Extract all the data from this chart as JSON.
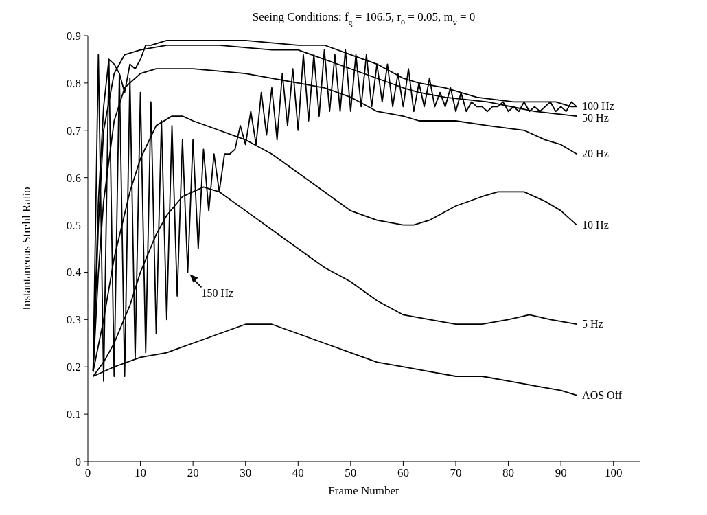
{
  "chart_data": {
    "type": "line",
    "title": "Seeing Conditions: f$_{g}$ = 106.5, r$_{0}$ = 0.05, m$_{v}$ = 0",
    "xlabel": "Frame Number",
    "ylabel": "Instantaneous Strehl Ratio",
    "xlim": [
      0,
      105
    ],
    "xticks": [
      0,
      10,
      20,
      30,
      40,
      50,
      60,
      70,
      80,
      90,
      100
    ],
    "ylim": [
      0,
      0.9
    ],
    "yticks": [
      0,
      0.1,
      0.2,
      0.3,
      0.4,
      0.5,
      0.6,
      0.7,
      0.8,
      0.9
    ],
    "marker": "none",
    "line_style": "solid",
    "series": [
      {
        "name": "100 Hz",
        "color": "#000000",
        "x": [
          1,
          2,
          3,
          4,
          5,
          6,
          7,
          8,
          9,
          10,
          11,
          12,
          15,
          20,
          30,
          40,
          45,
          50,
          55,
          60,
          63,
          68,
          74,
          81,
          89,
          92,
          93
        ],
        "values": [
          0.19,
          0.55,
          0.75,
          0.85,
          0.84,
          0.82,
          0.78,
          0.84,
          0.83,
          0.85,
          0.88,
          0.88,
          0.89,
          0.89,
          0.89,
          0.88,
          0.88,
          0.86,
          0.84,
          0.81,
          0.8,
          0.79,
          0.77,
          0.76,
          0.76,
          0.75,
          0.75
        ]
      },
      {
        "name": "50 Hz",
        "color": "#000000",
        "x": [
          1,
          2,
          3,
          5,
          7,
          10,
          15,
          25,
          35,
          40,
          45,
          50,
          55,
          60,
          63,
          68,
          76,
          85,
          93
        ],
        "values": [
          0.19,
          0.5,
          0.7,
          0.82,
          0.86,
          0.87,
          0.88,
          0.88,
          0.87,
          0.87,
          0.85,
          0.83,
          0.81,
          0.79,
          0.78,
          0.77,
          0.76,
          0.74,
          0.73
        ]
      },
      {
        "name": "20 Hz",
        "color": "#000000",
        "x": [
          1,
          2,
          3,
          5,
          7,
          10,
          13,
          20,
          30,
          40,
          45,
          50,
          55,
          60,
          63,
          70,
          76,
          83,
          87,
          90,
          93
        ],
        "values": [
          0.19,
          0.4,
          0.55,
          0.72,
          0.79,
          0.82,
          0.83,
          0.83,
          0.82,
          0.8,
          0.79,
          0.77,
          0.74,
          0.73,
          0.72,
          0.72,
          0.71,
          0.7,
          0.68,
          0.67,
          0.65
        ]
      },
      {
        "name": "10 Hz",
        "color": "#000000",
        "x": [
          1,
          3,
          5,
          8,
          10,
          13,
          16,
          18,
          20,
          25,
          30,
          35,
          40,
          45,
          50,
          55,
          60,
          62,
          65,
          70,
          75,
          78,
          83,
          87,
          90,
          93
        ],
        "values": [
          0.19,
          0.3,
          0.43,
          0.57,
          0.64,
          0.71,
          0.73,
          0.73,
          0.72,
          0.7,
          0.68,
          0.65,
          0.61,
          0.57,
          0.53,
          0.51,
          0.5,
          0.5,
          0.51,
          0.54,
          0.56,
          0.57,
          0.57,
          0.55,
          0.53,
          0.5
        ]
      },
      {
        "name": "5 Hz",
        "color": "#000000",
        "x": [
          1,
          3,
          5,
          8,
          10,
          13,
          15,
          18,
          20,
          22,
          25,
          30,
          35,
          40,
          45,
          50,
          55,
          60,
          65,
          70,
          75,
          80,
          84,
          88,
          93
        ],
        "values": [
          0.18,
          0.21,
          0.25,
          0.33,
          0.4,
          0.48,
          0.52,
          0.56,
          0.57,
          0.58,
          0.57,
          0.53,
          0.49,
          0.45,
          0.41,
          0.38,
          0.34,
          0.31,
          0.3,
          0.29,
          0.29,
          0.3,
          0.31,
          0.3,
          0.29
        ]
      },
      {
        "name": "AOS Off",
        "color": "#000000",
        "x": [
          1,
          5,
          10,
          15,
          20,
          25,
          30,
          33,
          35,
          40,
          45,
          50,
          55,
          60,
          65,
          70,
          75,
          80,
          85,
          90,
          93
        ],
        "values": [
          0.18,
          0.2,
          0.22,
          0.23,
          0.25,
          0.27,
          0.29,
          0.29,
          0.29,
          0.27,
          0.25,
          0.23,
          0.21,
          0.2,
          0.19,
          0.18,
          0.18,
          0.17,
          0.16,
          0.15,
          0.14
        ]
      },
      {
        "color": "#000000",
        "x": [
          1,
          2,
          3,
          4,
          5,
          6,
          7,
          8,
          9,
          10,
          11,
          12,
          13,
          14,
          15,
          16,
          17,
          18,
          19,
          20,
          21,
          22,
          23,
          24,
          25,
          26,
          27,
          28,
          29,
          30,
          31,
          32,
          33,
          34,
          35,
          36,
          37,
          38,
          39,
          40,
          41,
          42,
          43,
          44,
          45,
          46,
          47,
          48,
          49,
          50,
          51,
          52,
          53,
          54,
          55,
          56,
          57,
          58,
          59,
          60,
          61,
          62,
          63,
          64,
          65,
          66,
          67,
          68,
          69,
          70,
          71,
          72,
          73,
          74,
          75,
          76,
          77,
          78,
          79,
          80,
          81,
          82,
          83,
          84,
          85,
          86,
          87,
          88,
          89,
          90,
          91,
          92,
          93
        ],
        "values": [
          0.19,
          0.86,
          0.17,
          0.85,
          0.18,
          0.82,
          0.18,
          0.81,
          0.22,
          0.78,
          0.23,
          0.76,
          0.27,
          0.72,
          0.3,
          0.71,
          0.35,
          0.68,
          0.4,
          0.68,
          0.45,
          0.66,
          0.53,
          0.65,
          0.57,
          0.65,
          0.65,
          0.66,
          0.71,
          0.67,
          0.74,
          0.67,
          0.78,
          0.69,
          0.79,
          0.68,
          0.82,
          0.71,
          0.83,
          0.7,
          0.86,
          0.72,
          0.86,
          0.73,
          0.87,
          0.74,
          0.86,
          0.74,
          0.87,
          0.74,
          0.86,
          0.75,
          0.86,
          0.75,
          0.84,
          0.76,
          0.84,
          0.75,
          0.82,
          0.75,
          0.83,
          0.74,
          0.8,
          0.75,
          0.81,
          0.75,
          0.78,
          0.75,
          0.79,
          0.74,
          0.78,
          0.74,
          0.76,
          0.75,
          0.75,
          0.74,
          0.75,
          0.75,
          0.76,
          0.74,
          0.75,
          0.74,
          0.76,
          0.74,
          0.75,
          0.74,
          0.75,
          0.76,
          0.74,
          0.75,
          0.74,
          0.76,
          0.75
        ]
      }
    ],
    "annotations": [
      {
        "text": "150 Hz",
        "x": 19,
        "y": 0.4
      }
    ]
  }
}
